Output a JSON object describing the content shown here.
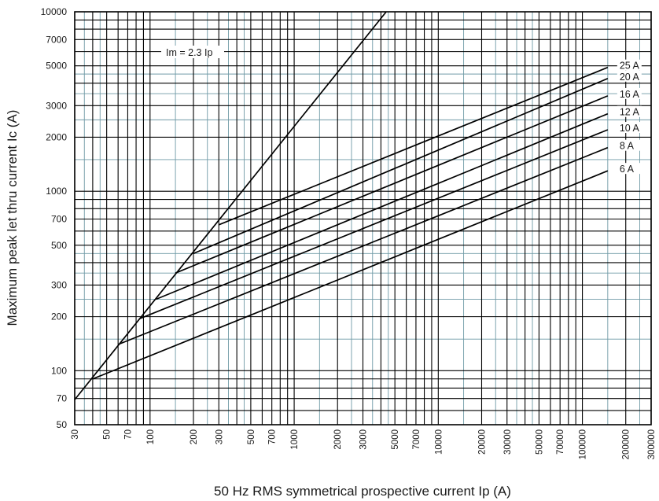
{
  "chart_data": {
    "type": "line",
    "title": "",
    "xlabel": "50 Hz RMS symmetrical prospective current Ip (A)",
    "ylabel": "Maximum peak let thru current Ic (A)",
    "x_scale": "log",
    "y_scale": "log",
    "xlim": [
      30,
      300000
    ],
    "ylim": [
      50,
      10000
    ],
    "x_ticks": [
      "30",
      "50",
      "70",
      "100",
      "200",
      "300",
      "500",
      "700",
      "1000",
      "2000",
      "3000",
      "5000",
      "7000",
      "10000",
      "20000",
      "30000",
      "50000",
      "70000",
      "100000",
      "200000",
      "300000"
    ],
    "y_ticks": [
      "10000",
      "7000",
      "5000",
      "3000",
      "2000",
      "1000",
      "700",
      "500",
      "300",
      "200",
      "100",
      "70",
      "50"
    ],
    "grid": true,
    "legend": "none",
    "annotation": "Im = 2.3 Ip",
    "series": [
      {
        "name": "Im = 2.3 Ip",
        "x": [
          30,
          4350
        ],
        "y": [
          69,
          10000
        ]
      },
      {
        "name": "25 A",
        "x": [
          300,
          150000
        ],
        "y": [
          650,
          4900
        ]
      },
      {
        "name": "20 A",
        "x": [
          200,
          150000
        ],
        "y": [
          450,
          4250
        ]
      },
      {
        "name": "16 A",
        "x": [
          150,
          150000
        ],
        "y": [
          350,
          3400
        ]
      },
      {
        "name": "12 A",
        "x": [
          110,
          150000
        ],
        "y": [
          250,
          2700
        ]
      },
      {
        "name": "10 A",
        "x": [
          85,
          150000
        ],
        "y": [
          195,
          2200
        ]
      },
      {
        "name": "8 A",
        "x": [
          60,
          150000
        ],
        "y": [
          140,
          1750
        ]
      },
      {
        "name": "6 A",
        "x": [
          40,
          150000
        ],
        "y": [
          90,
          1300
        ]
      }
    ]
  }
}
